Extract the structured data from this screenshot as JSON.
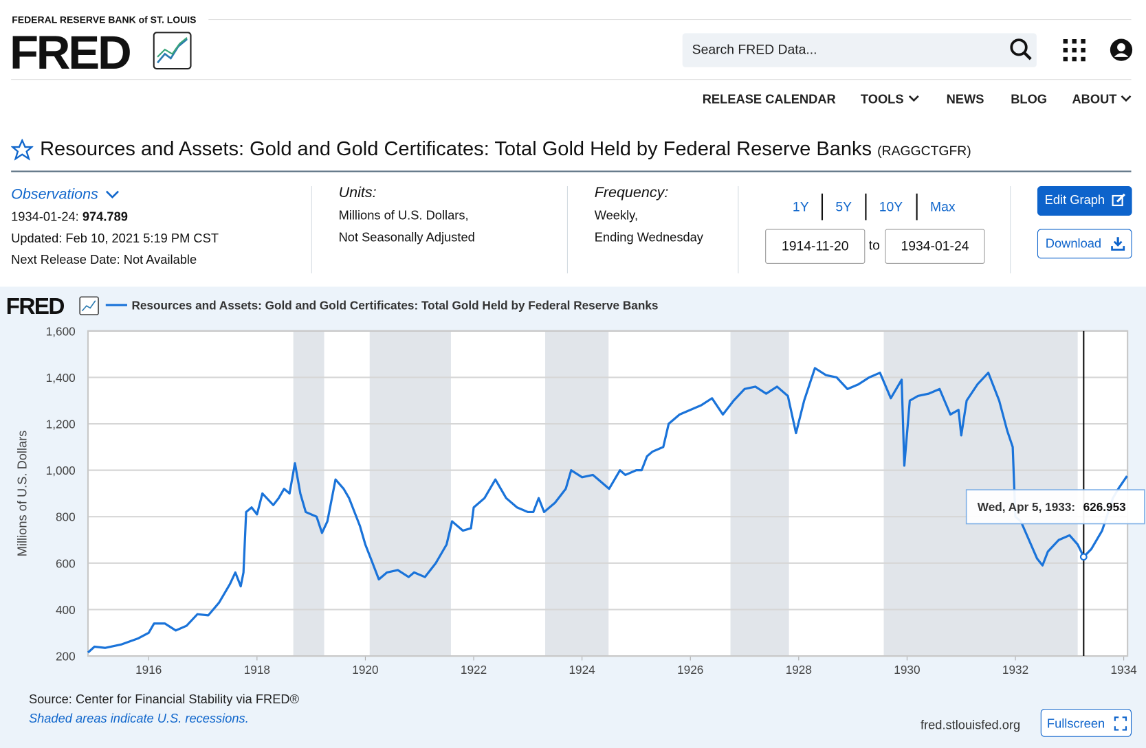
{
  "header": {
    "org": "FEDERAL RESERVE BANK of ST. LOUIS",
    "logo": "FRED",
    "search_placeholder": "Search FRED Data..."
  },
  "nav": [
    "RELEASE CALENDAR",
    "TOOLS",
    "NEWS",
    "BLOG",
    "ABOUT"
  ],
  "series_title": "Resources and Assets: Gold and Gold Certificates: Total Gold Held by Federal Reserve Banks",
  "series_id": "(RAGGCTGFR)",
  "info": {
    "observations_label": "Observations",
    "obs_date": "1934-01-24:",
    "obs_value": "974.789",
    "updated": "Updated: Feb 10, 2021 5:19 PM CST",
    "next_release": "Next Release Date: Not Available",
    "units_label": "Units:",
    "units_lines": [
      "Millions of U.S. Dollars,",
      "Not Seasonally Adjusted"
    ],
    "frequency_label": "Frequency:",
    "frequency_lines": [
      "Weekly,",
      "Ending Wednesday"
    ]
  },
  "range_buttons": [
    "1Y",
    "5Y",
    "10Y",
    "Max"
  ],
  "date_from": "1914-11-20",
  "date_to_label": "to",
  "date_to": "1934-01-24",
  "buttons": {
    "edit": "Edit Graph",
    "download": "Download",
    "fullscreen": "Fullscreen"
  },
  "footer": {
    "source": "Source: Center for Financial Stability via FRED®",
    "recession_note": "Shaded areas indicate U.S. recessions.",
    "site": "fred.stlouisfed.org"
  },
  "chart_data": {
    "type": "line",
    "logo": "FRED",
    "ylabel": "Millions of U.S. Dollars",
    "x": [
      1914.88,
      1915.0,
      1915.2,
      1915.5,
      1915.8,
      1916.0,
      1916.1,
      1916.3,
      1916.5,
      1916.7,
      1916.9,
      1917.1,
      1917.3,
      1917.5,
      1917.6,
      1917.7,
      1917.75,
      1917.8,
      1917.9,
      1918.0,
      1918.1,
      1918.3,
      1918.4,
      1918.5,
      1918.6,
      1918.7,
      1918.8,
      1918.9,
      1919.1,
      1919.2,
      1919.3,
      1919.45,
      1919.6,
      1919.7,
      1919.9,
      1920.0,
      1920.1,
      1920.25,
      1920.4,
      1920.6,
      1920.8,
      1920.9,
      1921.1,
      1921.3,
      1921.5,
      1921.6,
      1921.8,
      1921.95,
      1922.0,
      1922.2,
      1922.4,
      1922.6,
      1922.8,
      1923.0,
      1923.1,
      1923.2,
      1923.3,
      1923.5,
      1923.7,
      1923.8,
      1924.0,
      1924.2,
      1924.3,
      1924.5,
      1924.7,
      1924.8,
      1925.0,
      1925.1,
      1925.2,
      1925.3,
      1925.5,
      1925.6,
      1925.8,
      1926.0,
      1926.2,
      1926.4,
      1926.6,
      1926.8,
      1927.0,
      1927.2,
      1927.4,
      1927.6,
      1927.8,
      1927.95,
      1928.1,
      1928.3,
      1928.5,
      1928.7,
      1928.9,
      1929.1,
      1929.3,
      1929.5,
      1929.7,
      1929.9,
      1929.95,
      1930.05,
      1930.2,
      1930.4,
      1930.6,
      1930.8,
      1930.95,
      1931.0,
      1931.1,
      1931.3,
      1931.5,
      1931.7,
      1931.85,
      1931.95,
      1932.0,
      1932.1,
      1932.25,
      1932.4,
      1932.5,
      1932.6,
      1932.8,
      1933.0,
      1933.15,
      1933.26,
      1933.4,
      1933.6,
      1933.8,
      1933.9,
      1934.06
    ],
    "series": [
      {
        "name": "Resources and Assets: Gold and Gold Certificates: Total Gold Held by Federal Reserve Banks",
        "color": "#1a73d9",
        "values": [
          215,
          240,
          235,
          250,
          275,
          300,
          340,
          340,
          310,
          330,
          380,
          375,
          430,
          510,
          560,
          500,
          560,
          820,
          840,
          810,
          900,
          850,
          880,
          920,
          900,
          1030,
          900,
          820,
          800,
          730,
          780,
          960,
          920,
          880,
          760,
          680,
          620,
          530,
          560,
          570,
          540,
          560,
          540,
          600,
          680,
          780,
          740,
          750,
          840,
          880,
          960,
          880,
          840,
          820,
          820,
          880,
          820,
          860,
          920,
          1000,
          970,
          980,
          960,
          920,
          1000,
          980,
          1000,
          1000,
          1060,
          1080,
          1100,
          1200,
          1240,
          1260,
          1280,
          1310,
          1240,
          1300,
          1350,
          1360,
          1330,
          1360,
          1320,
          1160,
          1300,
          1440,
          1410,
          1400,
          1350,
          1370,
          1400,
          1420,
          1310,
          1390,
          1020,
          1300,
          1320,
          1330,
          1350,
          1240,
          1260,
          1150,
          1300,
          1370,
          1420,
          1300,
          1170,
          1100,
          800,
          780,
          700,
          620,
          590,
          650,
          700,
          720,
          680,
          627,
          660,
          740,
          880,
          920,
          975
        ]
      }
    ],
    "recessions": [
      [
        1918.67,
        1919.24
      ],
      [
        1920.08,
        1921.58
      ],
      [
        1923.32,
        1924.49
      ],
      [
        1926.74,
        1927.82
      ],
      [
        1929.57,
        1933.15
      ]
    ],
    "xlim": [
      1914.88,
      1934.07
    ],
    "xticks": [
      1916,
      1918,
      1920,
      1922,
      1924,
      1926,
      1928,
      1930,
      1932,
      1934
    ],
    "ylim": [
      200,
      1600
    ],
    "yticks": [
      200,
      400,
      600,
      800,
      {
        "value": 1000,
        "label": "1,000"
      },
      {
        "value": 1200,
        "label": "1,200"
      },
      {
        "value": 1400,
        "label": "1,400"
      },
      {
        "value": 1600,
        "label": "1,600"
      }
    ],
    "grid": true,
    "tooltip": {
      "x": 1933.26,
      "label": "Wed, Apr 5, 1933:",
      "value": 626.953
    }
  }
}
